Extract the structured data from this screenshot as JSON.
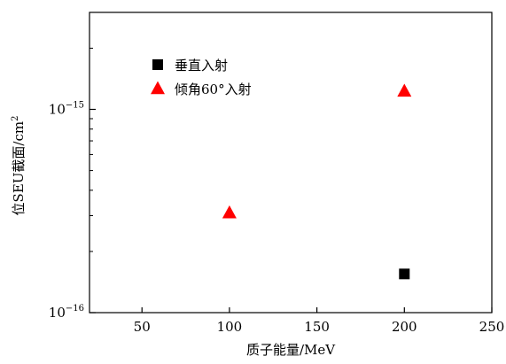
{
  "chart_data": {
    "type": "scatter",
    "xlabel": "质子能量/MeV",
    "ylabel": "位SEU截面/cm",
    "ylabel_sup": "2",
    "xlim": [
      20,
      250
    ],
    "ylim": [
      1e-16,
      3e-15
    ],
    "y_scale": "log",
    "grid": false,
    "legend_position": "top-left",
    "x_ticks": [
      {
        "value": 50,
        "label": "50"
      },
      {
        "value": 100,
        "label": "100"
      },
      {
        "value": 150,
        "label": "150"
      },
      {
        "value": 200,
        "label": "200"
      },
      {
        "value": 250,
        "label": "250"
      }
    ],
    "y_ticks": [
      {
        "value": 1e-16,
        "base": "10",
        "exp": "−16"
      },
      {
        "value": 1e-15,
        "base": "10",
        "exp": "−15"
      }
    ],
    "series": [
      {
        "name": "垂直入射",
        "marker": "square",
        "color": "#000000",
        "points": [
          {
            "x": 200,
            "y": 1.55e-16
          }
        ]
      },
      {
        "name": "倾角60°入射",
        "marker": "triangle",
        "color": "#ff0000",
        "points": [
          {
            "x": 100,
            "y": 3.1e-16
          },
          {
            "x": 200,
            "y": 1.23e-15
          }
        ]
      }
    ]
  }
}
